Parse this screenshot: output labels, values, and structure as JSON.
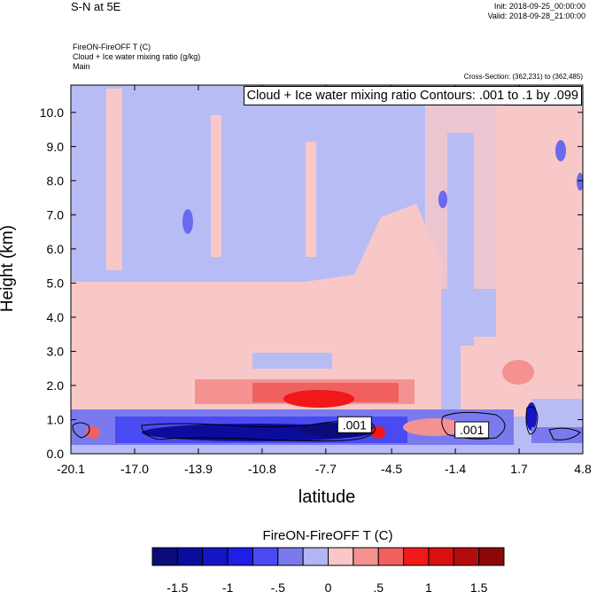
{
  "header": {
    "main_title": "S-N at 5E",
    "init": "Init: 2018-09-25_00:00:00",
    "valid": "Valid: 2018-09-28_21:00:00",
    "field_1": "FireON-FireOFF T   (C)",
    "field_2": "Cloud + Ice water mixing ratio   (g/kg)",
    "field_3": "Main",
    "cross_section": "Cross-Section: (362,231) to (362,485)"
  },
  "chart_data": {
    "type": "heatmap",
    "title": "S-N at 5E",
    "xlabel": "latitude",
    "ylabel": "Height (km)",
    "xlim": [
      -20.1,
      4.8
    ],
    "ylim": [
      0.0,
      10.8
    ],
    "x_ticks": [
      -20.1,
      -17.0,
      -13.9,
      -10.8,
      -7.7,
      -4.5,
      -1.4,
      1.7,
      4.8
    ],
    "x_tick_labels": [
      "-20.1",
      "-17.0",
      "-13.9",
      "-10.8",
      "-7.7",
      "-4.5",
      "-1.4",
      "1.7",
      "4.8"
    ],
    "y_ticks": [
      0.0,
      1.0,
      2.0,
      3.0,
      4.0,
      5.0,
      6.0,
      7.0,
      8.0,
      9.0,
      10.0
    ],
    "y_tick_labels": [
      "0.0",
      "1.0",
      "2.0",
      "3.0",
      "4.0",
      "5.0",
      "6.0",
      "7.0",
      "8.0",
      "9.0",
      "10.0"
    ],
    "contour_annotation": "Cloud + Ice water mixing ratio Contours: .001 to .1 by .099",
    "contour_labels": [
      {
        "text": ".001",
        "lat": -6.3,
        "height": 0.85
      },
      {
        "text": ".001",
        "lat": -0.6,
        "height": 0.7
      }
    ],
    "colorbar": {
      "title": "FireON-FireOFF T  (C)",
      "colors": [
        "#0b0b7a",
        "#0c0c9c",
        "#1515c4",
        "#1e1ee6",
        "#4a4af2",
        "#7a7aee",
        "#b4b4f4",
        "#f8c8c8",
        "#f49292",
        "#f06060",
        "#f01818",
        "#d81010",
        "#b40c0c",
        "#8c0808"
      ],
      "tick_values": [
        -1.5,
        -1,
        -0.5,
        0,
        0.5,
        1,
        1.5
      ],
      "tick_labels": [
        "-1.5",
        "-1",
        "-.5",
        "0",
        ".5",
        "1",
        "1.5"
      ]
    }
  }
}
